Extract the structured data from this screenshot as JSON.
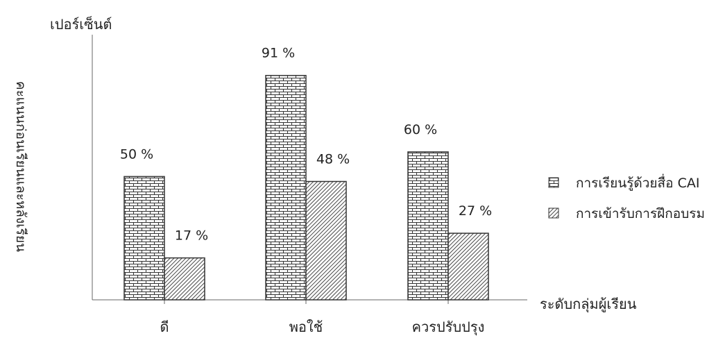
{
  "chart_data": {
    "type": "bar",
    "title": "",
    "ylabel": "คะแนนก่อนเรียนและหลังเรียน",
    "yunit": "เปอร์เซ็นต์",
    "xlabel": "ระดับกลุ่มผู้เรียน",
    "categories": [
      "ดี",
      "พอใช้",
      "ควรปรับปรุง"
    ],
    "ylim": [
      0,
      100
    ],
    "grid": false,
    "legend_position": "right",
    "series": [
      {
        "name": "การเรียนรู้ด้วยสื่อ CAI",
        "values": [
          50,
          91,
          60
        ],
        "labels": [
          "50 %",
          "91 %",
          "60 %"
        ],
        "pattern": "brick"
      },
      {
        "name": "การเข้ารับการฝึกอบรม",
        "values": [
          17,
          48,
          27
        ],
        "labels": [
          "17 %",
          "48 %",
          "27 %"
        ],
        "pattern": "diagonal"
      }
    ]
  }
}
